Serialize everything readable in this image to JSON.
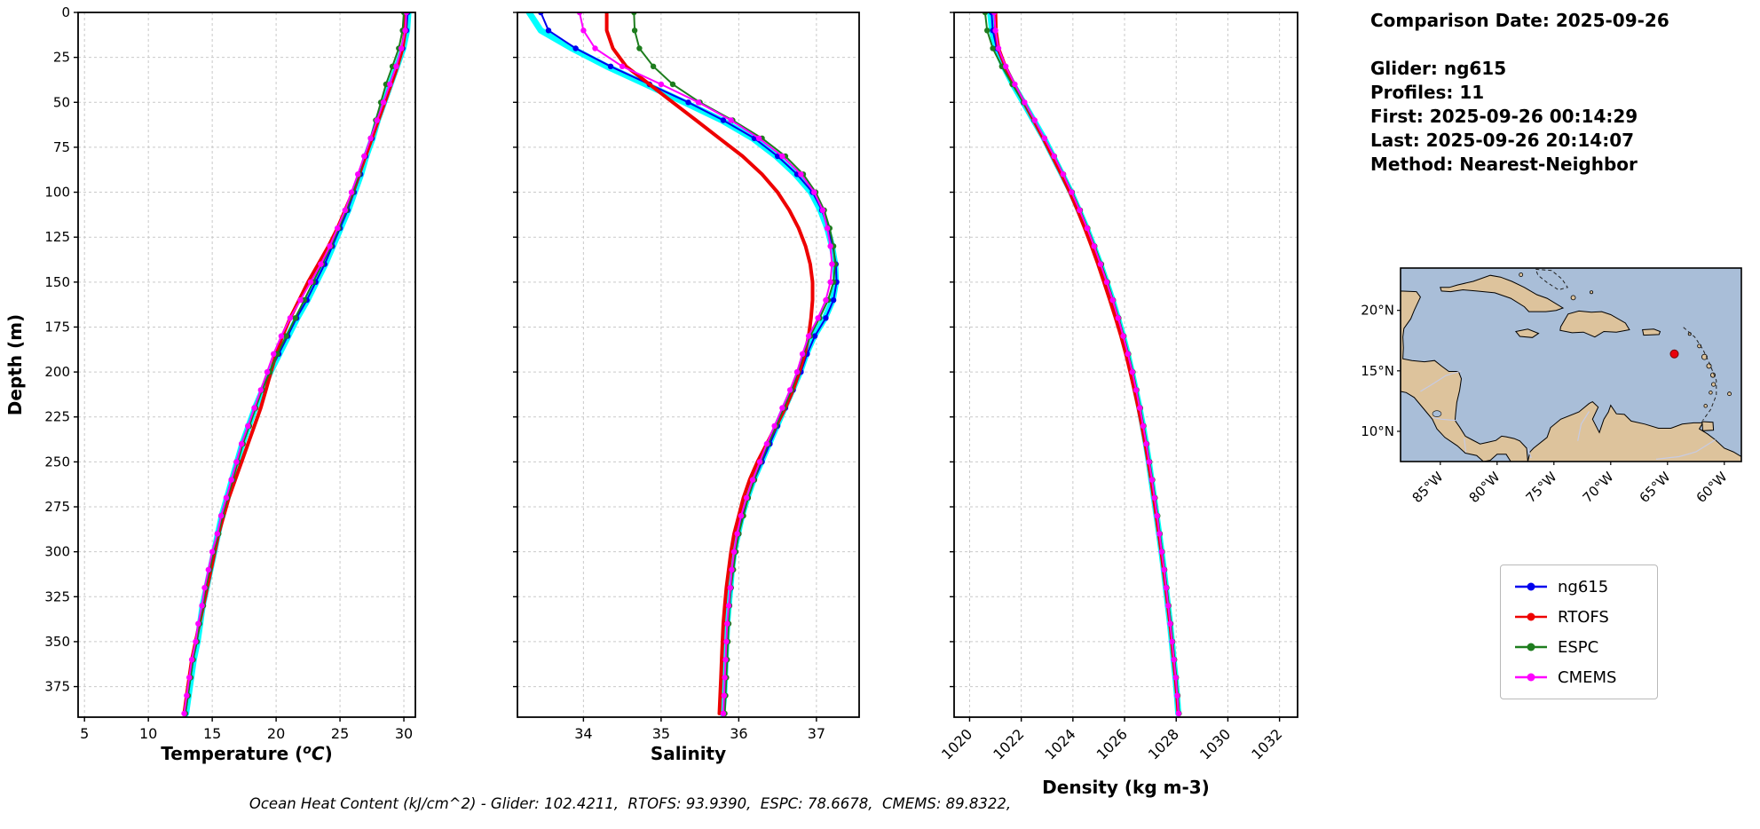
{
  "info": {
    "comparison_date": "Comparison Date: 2025-09-26",
    "glider": "Glider: ng615",
    "profiles": "Profiles: 11",
    "first": "First: 2025-09-26 00:14:29",
    "last": "Last: 2025-09-26 20:14:07",
    "method": "Method: Nearest-Neighbor"
  },
  "footer": "Ocean Heat Content (kJ/cm^2) - Glider: 102.4211,  RTOFS: 93.9390,  ESPC: 78.6678,  CMEMS: 89.8322,",
  "legend": {
    "items": [
      {
        "label": "ng615",
        "color": "#0000ee"
      },
      {
        "label": "RTOFS",
        "color": "#ee0000"
      },
      {
        "label": "ESPC",
        "color": "#1e7d1e"
      },
      {
        "label": "CMEMS",
        "color": "#ff00ff"
      }
    ]
  },
  "map": {
    "ocean_color": "#a9bed8",
    "land_color": "#ddc39c",
    "marker": {
      "lat": 16.4,
      "lon": -64.4,
      "color": "#e8000b"
    },
    "lat_ticks": [
      {
        "value": 20,
        "label": "20°N"
      },
      {
        "value": 15,
        "label": "15°N"
      },
      {
        "value": 10,
        "label": "10°N"
      }
    ],
    "lon_ticks": [
      {
        "value": -85,
        "label": "85°W"
      },
      {
        "value": -80,
        "label": "80°W"
      },
      {
        "value": -75,
        "label": "75°W"
      },
      {
        "value": -70,
        "label": "70°W"
      },
      {
        "value": -65,
        "label": "65°W"
      },
      {
        "value": -60,
        "label": "60°W"
      }
    ]
  },
  "chart_data": [
    {
      "name": "temperature",
      "type": "line",
      "title": "",
      "xlabel": "Temperature (^oC)",
      "ylabel": "Depth (m)",
      "xlim": [
        4.5,
        30.9
      ],
      "ylim": [
        0,
        392
      ],
      "xticks": [
        5,
        10,
        15,
        20,
        25,
        30
      ],
      "yticks": [
        0,
        25,
        50,
        75,
        100,
        125,
        150,
        175,
        200,
        225,
        250,
        275,
        300,
        325,
        350,
        375
      ],
      "grid": true,
      "depths": [
        0,
        10,
        20,
        30,
        40,
        50,
        60,
        70,
        80,
        90,
        100,
        110,
        120,
        130,
        140,
        150,
        160,
        170,
        180,
        190,
        200,
        210,
        220,
        230,
        240,
        250,
        260,
        270,
        280,
        290,
        300,
        310,
        320,
        330,
        340,
        350,
        360,
        370,
        380,
        390
      ],
      "series": [
        {
          "name": "glider-raw",
          "color": "#00ffff",
          "lw": 7,
          "marker": false,
          "values": [
            30.35,
            30.25,
            29.95,
            29.45,
            28.95,
            28.45,
            27.95,
            27.55,
            27.05,
            26.65,
            26.15,
            25.65,
            25.05,
            24.45,
            23.85,
            23.15,
            22.45,
            21.65,
            20.95,
            20.25,
            19.55,
            18.95,
            18.35,
            17.85,
            17.35,
            16.95,
            16.55,
            16.15,
            15.75,
            15.45,
            15.15,
            14.85,
            14.55,
            14.25,
            14.05,
            13.85,
            13.55,
            13.35,
            13.15,
            12.95
          ]
        },
        {
          "name": "ng615",
          "color": "#0000ee",
          "lw": 2,
          "marker": true,
          "values": [
            30.3,
            30.2,
            29.9,
            29.4,
            28.9,
            28.4,
            27.9,
            27.5,
            27.0,
            26.6,
            26.1,
            25.6,
            25.0,
            24.4,
            23.8,
            23.1,
            22.4,
            21.6,
            20.9,
            20.2,
            19.5,
            18.9,
            18.3,
            17.8,
            17.3,
            16.9,
            16.5,
            16.1,
            15.7,
            15.4,
            15.1,
            14.8,
            14.5,
            14.2,
            14.0,
            13.8,
            13.5,
            13.3,
            13.1,
            12.9
          ]
        },
        {
          "name": "RTOFS",
          "color": "#ee0000",
          "lw": 4,
          "marker": false,
          "values": [
            30.1,
            30.1,
            29.9,
            29.5,
            29.0,
            28.5,
            28.0,
            27.5,
            27.0,
            26.5,
            26.0,
            25.4,
            24.8,
            24.1,
            23.3,
            22.5,
            21.8,
            21.1,
            20.5,
            20.0,
            19.6,
            19.2,
            18.8,
            18.3,
            17.8,
            17.3,
            16.8,
            16.3,
            15.9,
            15.5,
            15.2,
            14.9,
            14.6,
            14.3,
            14.0,
            13.7,
            13.4,
            13.2,
            13.0,
            12.8
          ]
        },
        {
          "name": "ESPC",
          "color": "#1e7d1e",
          "lw": 2,
          "marker": true,
          "values": [
            30.0,
            29.9,
            29.6,
            29.1,
            28.6,
            28.2,
            27.8,
            27.4,
            26.9,
            26.5,
            26.0,
            25.5,
            24.9,
            24.3,
            23.6,
            22.9,
            22.2,
            21.5,
            20.8,
            20.1,
            19.5,
            18.9,
            18.4,
            17.9,
            17.4,
            17.0,
            16.6,
            16.2,
            15.8,
            15.5,
            15.1,
            14.8,
            14.5,
            14.3,
            14.0,
            13.8,
            13.5,
            13.3,
            13.1,
            12.9
          ]
        },
        {
          "name": "CMEMS",
          "color": "#ff00ff",
          "lw": 2,
          "marker": true,
          "values": [
            30.2,
            30.1,
            29.8,
            29.4,
            28.9,
            28.4,
            27.9,
            27.4,
            26.9,
            26.4,
            25.9,
            25.4,
            24.8,
            24.2,
            23.5,
            22.7,
            21.9,
            21.1,
            20.4,
            19.8,
            19.3,
            18.8,
            18.3,
            17.8,
            17.3,
            16.9,
            16.5,
            16.1,
            15.7,
            15.4,
            15.0,
            14.7,
            14.4,
            14.2,
            13.9,
            13.7,
            13.4,
            13.2,
            13.0,
            12.8
          ]
        }
      ]
    },
    {
      "name": "salinity",
      "type": "line",
      "title": "",
      "xlabel": "Salinity",
      "ylabel": "",
      "xlim": [
        33.15,
        37.55
      ],
      "ylim": [
        0,
        392
      ],
      "xticks": [
        34,
        35,
        36,
        37
      ],
      "yticks": [
        0,
        25,
        50,
        75,
        100,
        125,
        150,
        175,
        200,
        225,
        250,
        275,
        300,
        325,
        350,
        375
      ],
      "grid": true,
      "depths": [
        0,
        10,
        20,
        30,
        40,
        50,
        60,
        70,
        80,
        90,
        100,
        110,
        120,
        130,
        140,
        150,
        160,
        170,
        180,
        190,
        200,
        210,
        220,
        230,
        240,
        250,
        260,
        270,
        280,
        290,
        300,
        310,
        320,
        330,
        340,
        350,
        360,
        370,
        380,
        390
      ],
      "series": [
        {
          "name": "glider-raw",
          "color": "#00ffff",
          "lw": 7,
          "marker": false,
          "values": [
            33.3,
            33.45,
            33.85,
            34.3,
            34.8,
            35.3,
            35.78,
            36.18,
            36.48,
            36.73,
            36.93,
            37.05,
            37.14,
            37.2,
            37.24,
            37.25,
            37.21,
            37.11,
            36.97,
            36.87,
            36.79,
            36.69,
            36.59,
            36.49,
            36.39,
            36.29,
            36.19,
            36.11,
            36.04,
            35.99,
            35.94,
            35.91,
            35.89,
            35.87,
            35.85,
            35.84,
            35.83,
            35.82,
            35.81,
            35.79
          ]
        },
        {
          "name": "ng615",
          "color": "#0000ee",
          "lw": 2,
          "marker": true,
          "values": [
            33.45,
            33.55,
            33.9,
            34.35,
            34.85,
            35.35,
            35.8,
            36.2,
            36.5,
            36.75,
            36.95,
            37.07,
            37.15,
            37.21,
            37.25,
            37.26,
            37.22,
            37.12,
            36.98,
            36.88,
            36.8,
            36.7,
            36.6,
            36.5,
            36.4,
            36.3,
            36.2,
            36.12,
            36.05,
            36.0,
            35.95,
            35.92,
            35.9,
            35.88,
            35.86,
            35.85,
            35.84,
            35.83,
            35.82,
            35.8
          ]
        },
        {
          "name": "RTOFS",
          "color": "#ee0000",
          "lw": 4,
          "marker": false,
          "values": [
            34.3,
            34.3,
            34.38,
            34.55,
            34.85,
            35.15,
            35.45,
            35.75,
            36.05,
            36.3,
            36.5,
            36.65,
            36.77,
            36.86,
            36.92,
            36.95,
            36.95,
            36.93,
            36.9,
            36.85,
            36.78,
            36.7,
            36.6,
            36.48,
            36.36,
            36.24,
            36.14,
            36.06,
            36.0,
            35.94,
            35.9,
            35.87,
            35.84,
            35.82,
            35.8,
            35.79,
            35.78,
            35.77,
            35.76,
            35.75
          ]
        },
        {
          "name": "ESPC",
          "color": "#1e7d1e",
          "lw": 2,
          "marker": true,
          "values": [
            34.65,
            34.66,
            34.72,
            34.9,
            35.15,
            35.5,
            35.92,
            36.3,
            36.6,
            36.83,
            36.99,
            37.1,
            37.17,
            37.22,
            37.24,
            37.22,
            37.15,
            37.04,
            36.92,
            36.83,
            36.76,
            36.68,
            36.58,
            36.48,
            36.38,
            36.28,
            36.2,
            36.12,
            36.06,
            36.0,
            35.96,
            35.93,
            35.9,
            35.88,
            35.87,
            35.86,
            35.85,
            35.84,
            35.83,
            35.82
          ]
        },
        {
          "name": "CMEMS",
          "color": "#ff00ff",
          "lw": 2,
          "marker": true,
          "values": [
            33.95,
            34.0,
            34.15,
            34.5,
            35.0,
            35.48,
            35.9,
            36.26,
            36.56,
            36.8,
            36.97,
            37.08,
            37.14,
            37.18,
            37.2,
            37.18,
            37.12,
            37.02,
            36.9,
            36.82,
            36.75,
            36.66,
            36.56,
            36.46,
            36.36,
            36.27,
            36.18,
            36.1,
            36.03,
            35.98,
            35.94,
            35.91,
            35.89,
            35.87,
            35.85,
            35.84,
            35.83,
            35.82,
            35.81,
            35.8
          ]
        }
      ]
    },
    {
      "name": "density",
      "type": "line",
      "title": "",
      "xlabel": "Density (kg m-3)",
      "ylabel": "",
      "xlim": [
        1019.4,
        1032.7
      ],
      "ylim": [
        0,
        392
      ],
      "xticks": [
        1020,
        1022,
        1024,
        1026,
        1028,
        1030,
        1032
      ],
      "yticks": [
        0,
        25,
        50,
        75,
        100,
        125,
        150,
        175,
        200,
        225,
        250,
        275,
        300,
        325,
        350,
        375
      ],
      "grid": true,
      "depths": [
        0,
        10,
        20,
        30,
        40,
        50,
        60,
        70,
        80,
        90,
        100,
        110,
        120,
        130,
        140,
        150,
        160,
        170,
        180,
        190,
        200,
        210,
        220,
        230,
        240,
        250,
        260,
        270,
        280,
        290,
        300,
        310,
        320,
        330,
        340,
        350,
        360,
        370,
        380,
        390
      ],
      "series": [
        {
          "name": "glider-raw",
          "color": "#00ffff",
          "lw": 7,
          "marker": false,
          "values": [
            1020.8,
            1020.87,
            1021.02,
            1021.32,
            1021.68,
            1022.08,
            1022.48,
            1022.88,
            1023.23,
            1023.58,
            1023.93,
            1024.23,
            1024.53,
            1024.8,
            1025.06,
            1025.3,
            1025.53,
            1025.74,
            1025.94,
            1026.12,
            1026.28,
            1026.43,
            1026.58,
            1026.71,
            1026.83,
            1026.94,
            1027.04,
            1027.14,
            1027.24,
            1027.34,
            1027.43,
            1027.52,
            1027.6,
            1027.68,
            1027.76,
            1027.83,
            1027.9,
            1027.97,
            1028.03,
            1028.08
          ]
        },
        {
          "name": "ng615",
          "color": "#0000ee",
          "lw": 2,
          "marker": true,
          "values": [
            1020.85,
            1020.9,
            1021.05,
            1021.35,
            1021.7,
            1022.1,
            1022.5,
            1022.9,
            1023.25,
            1023.6,
            1023.95,
            1024.25,
            1024.55,
            1024.82,
            1025.08,
            1025.32,
            1025.55,
            1025.76,
            1025.96,
            1026.14,
            1026.3,
            1026.45,
            1026.6,
            1026.73,
            1026.85,
            1026.96,
            1027.06,
            1027.16,
            1027.26,
            1027.36,
            1027.45,
            1027.54,
            1027.62,
            1027.7,
            1027.78,
            1027.85,
            1027.92,
            1027.99,
            1028.05,
            1028.1
          ]
        },
        {
          "name": "RTOFS",
          "color": "#ee0000",
          "lw": 4,
          "marker": false,
          "values": [
            1021.0,
            1021.02,
            1021.12,
            1021.38,
            1021.72,
            1022.1,
            1022.48,
            1022.85,
            1023.2,
            1023.55,
            1023.88,
            1024.18,
            1024.46,
            1024.72,
            1024.97,
            1025.2,
            1025.43,
            1025.65,
            1025.86,
            1026.05,
            1026.22,
            1026.38,
            1026.53,
            1026.67,
            1026.8,
            1026.92,
            1027.03,
            1027.13,
            1027.23,
            1027.33,
            1027.42,
            1027.51,
            1027.6,
            1027.68,
            1027.76,
            1027.83,
            1027.9,
            1027.97,
            1028.03,
            1028.08
          ]
        },
        {
          "name": "ESPC",
          "color": "#1e7d1e",
          "lw": 2,
          "marker": true,
          "values": [
            1020.6,
            1020.68,
            1020.9,
            1021.25,
            1021.65,
            1022.08,
            1022.5,
            1022.9,
            1023.28,
            1023.63,
            1023.97,
            1024.28,
            1024.57,
            1024.84,
            1025.1,
            1025.34,
            1025.56,
            1025.77,
            1025.97,
            1026.15,
            1026.32,
            1026.47,
            1026.61,
            1026.74,
            1026.86,
            1026.97,
            1027.08,
            1027.18,
            1027.28,
            1027.37,
            1027.46,
            1027.55,
            1027.63,
            1027.71,
            1027.79,
            1027.86,
            1027.93,
            1028.0,
            1028.06,
            1028.11
          ]
        },
        {
          "name": "CMEMS",
          "color": "#ff00ff",
          "lw": 2,
          "marker": true,
          "values": [
            1020.95,
            1021.0,
            1021.12,
            1021.4,
            1021.75,
            1022.13,
            1022.52,
            1022.9,
            1023.27,
            1023.62,
            1023.95,
            1024.26,
            1024.55,
            1024.82,
            1025.07,
            1025.31,
            1025.54,
            1025.75,
            1025.95,
            1026.13,
            1026.3,
            1026.45,
            1026.59,
            1026.72,
            1026.84,
            1026.95,
            1027.06,
            1027.16,
            1027.26,
            1027.35,
            1027.44,
            1027.53,
            1027.61,
            1027.69,
            1027.77,
            1027.84,
            1027.91,
            1027.98,
            1028.04,
            1028.09
          ]
        }
      ]
    }
  ]
}
